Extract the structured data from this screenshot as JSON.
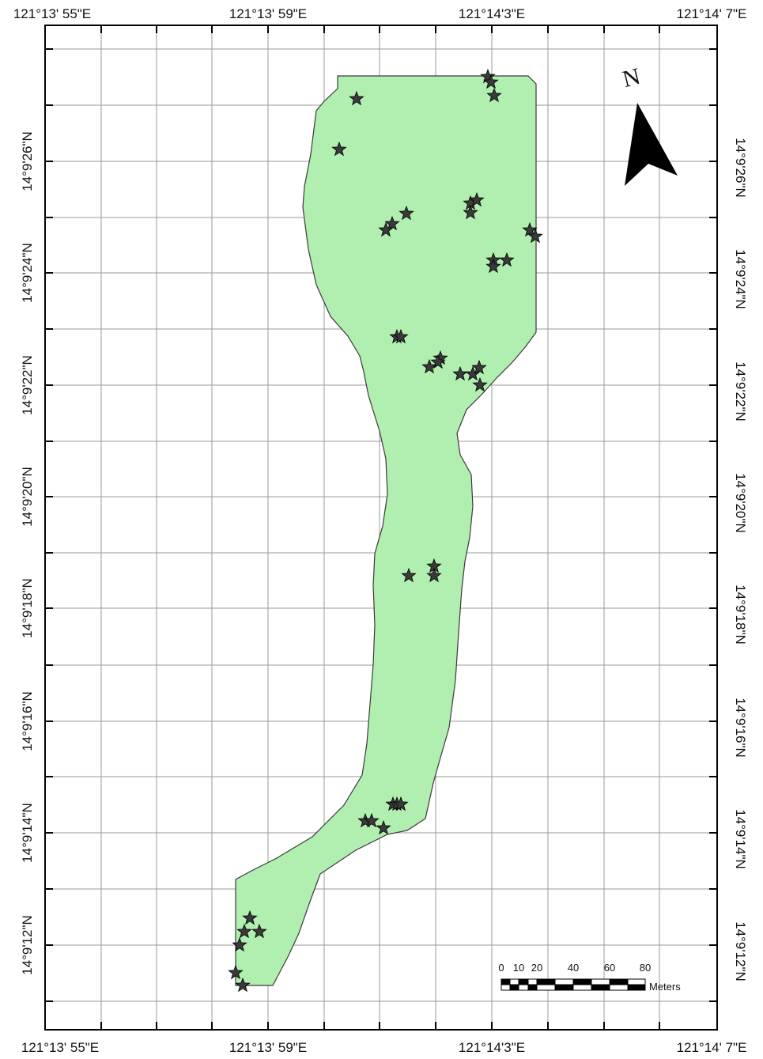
{
  "map": {
    "fill_color": "#b1efb1",
    "outline_color": "#3a3a3a",
    "grid_color": "#9a9a9a",
    "marker_color": "#3a3a3a",
    "marker_symbol": "star-icon",
    "longitude_labels": [
      "121°13' 55\"E",
      "121°13' 59\"E",
      "121°14'3\"E",
      "121°14' 7\"E"
    ],
    "latitude_labels": [
      "14°9'26\"N",
      "14°9'24\"N",
      "14°9'22\"N",
      "14°9'20\"N",
      "14°9'18\"N",
      "14°9'16\"N",
      "14°9'14\"N",
      "14°9'12\"N"
    ],
    "point_count": 45
  },
  "north_arrow": {
    "label": "N",
    "icon": "north-arrow-icon"
  },
  "scale_bar": {
    "tick_labels": [
      "0",
      "10",
      "20",
      "40",
      "60",
      "80"
    ],
    "unit": "Meters"
  }
}
